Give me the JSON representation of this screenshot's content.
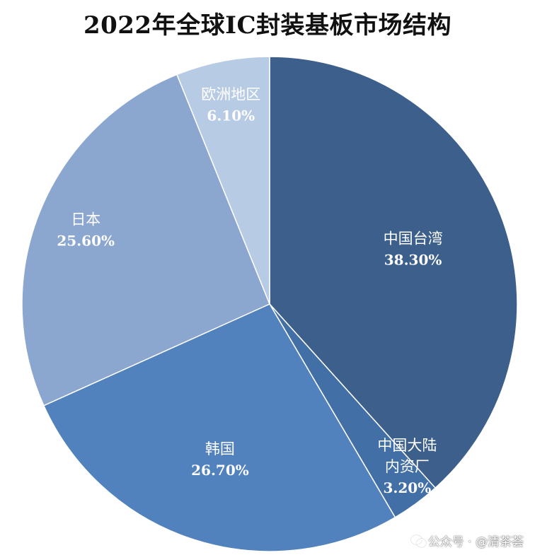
{
  "chart_data": {
    "type": "pie",
    "title": "2022年全球IC封装基板市场结构",
    "slices": [
      {
        "label": "中国台湾",
        "value": 38.3,
        "display": "38.30%",
        "color": "#3c5f8b"
      },
      {
        "label": "中国大陆内资厂",
        "label_lines": [
          "中国大陆",
          "内资厂"
        ],
        "value": 3.2,
        "display": "3.20%",
        "color": "#416fa6"
      },
      {
        "label": "韩国",
        "value": 26.7,
        "display": "26.70%",
        "color": "#5282bd"
      },
      {
        "label": "日本",
        "value": 25.6,
        "display": "25.60%",
        "color": "#8ba6cf"
      },
      {
        "label": "欧洲地区",
        "value": 6.1,
        "display": "6.10%",
        "color": "#b8cbe5"
      }
    ],
    "start_angle_deg": 0,
    "direction": "clockwise",
    "legend": "none"
  },
  "watermark": {
    "icon": "wechat-icon",
    "text": "公众号 · @清茶荟"
  }
}
